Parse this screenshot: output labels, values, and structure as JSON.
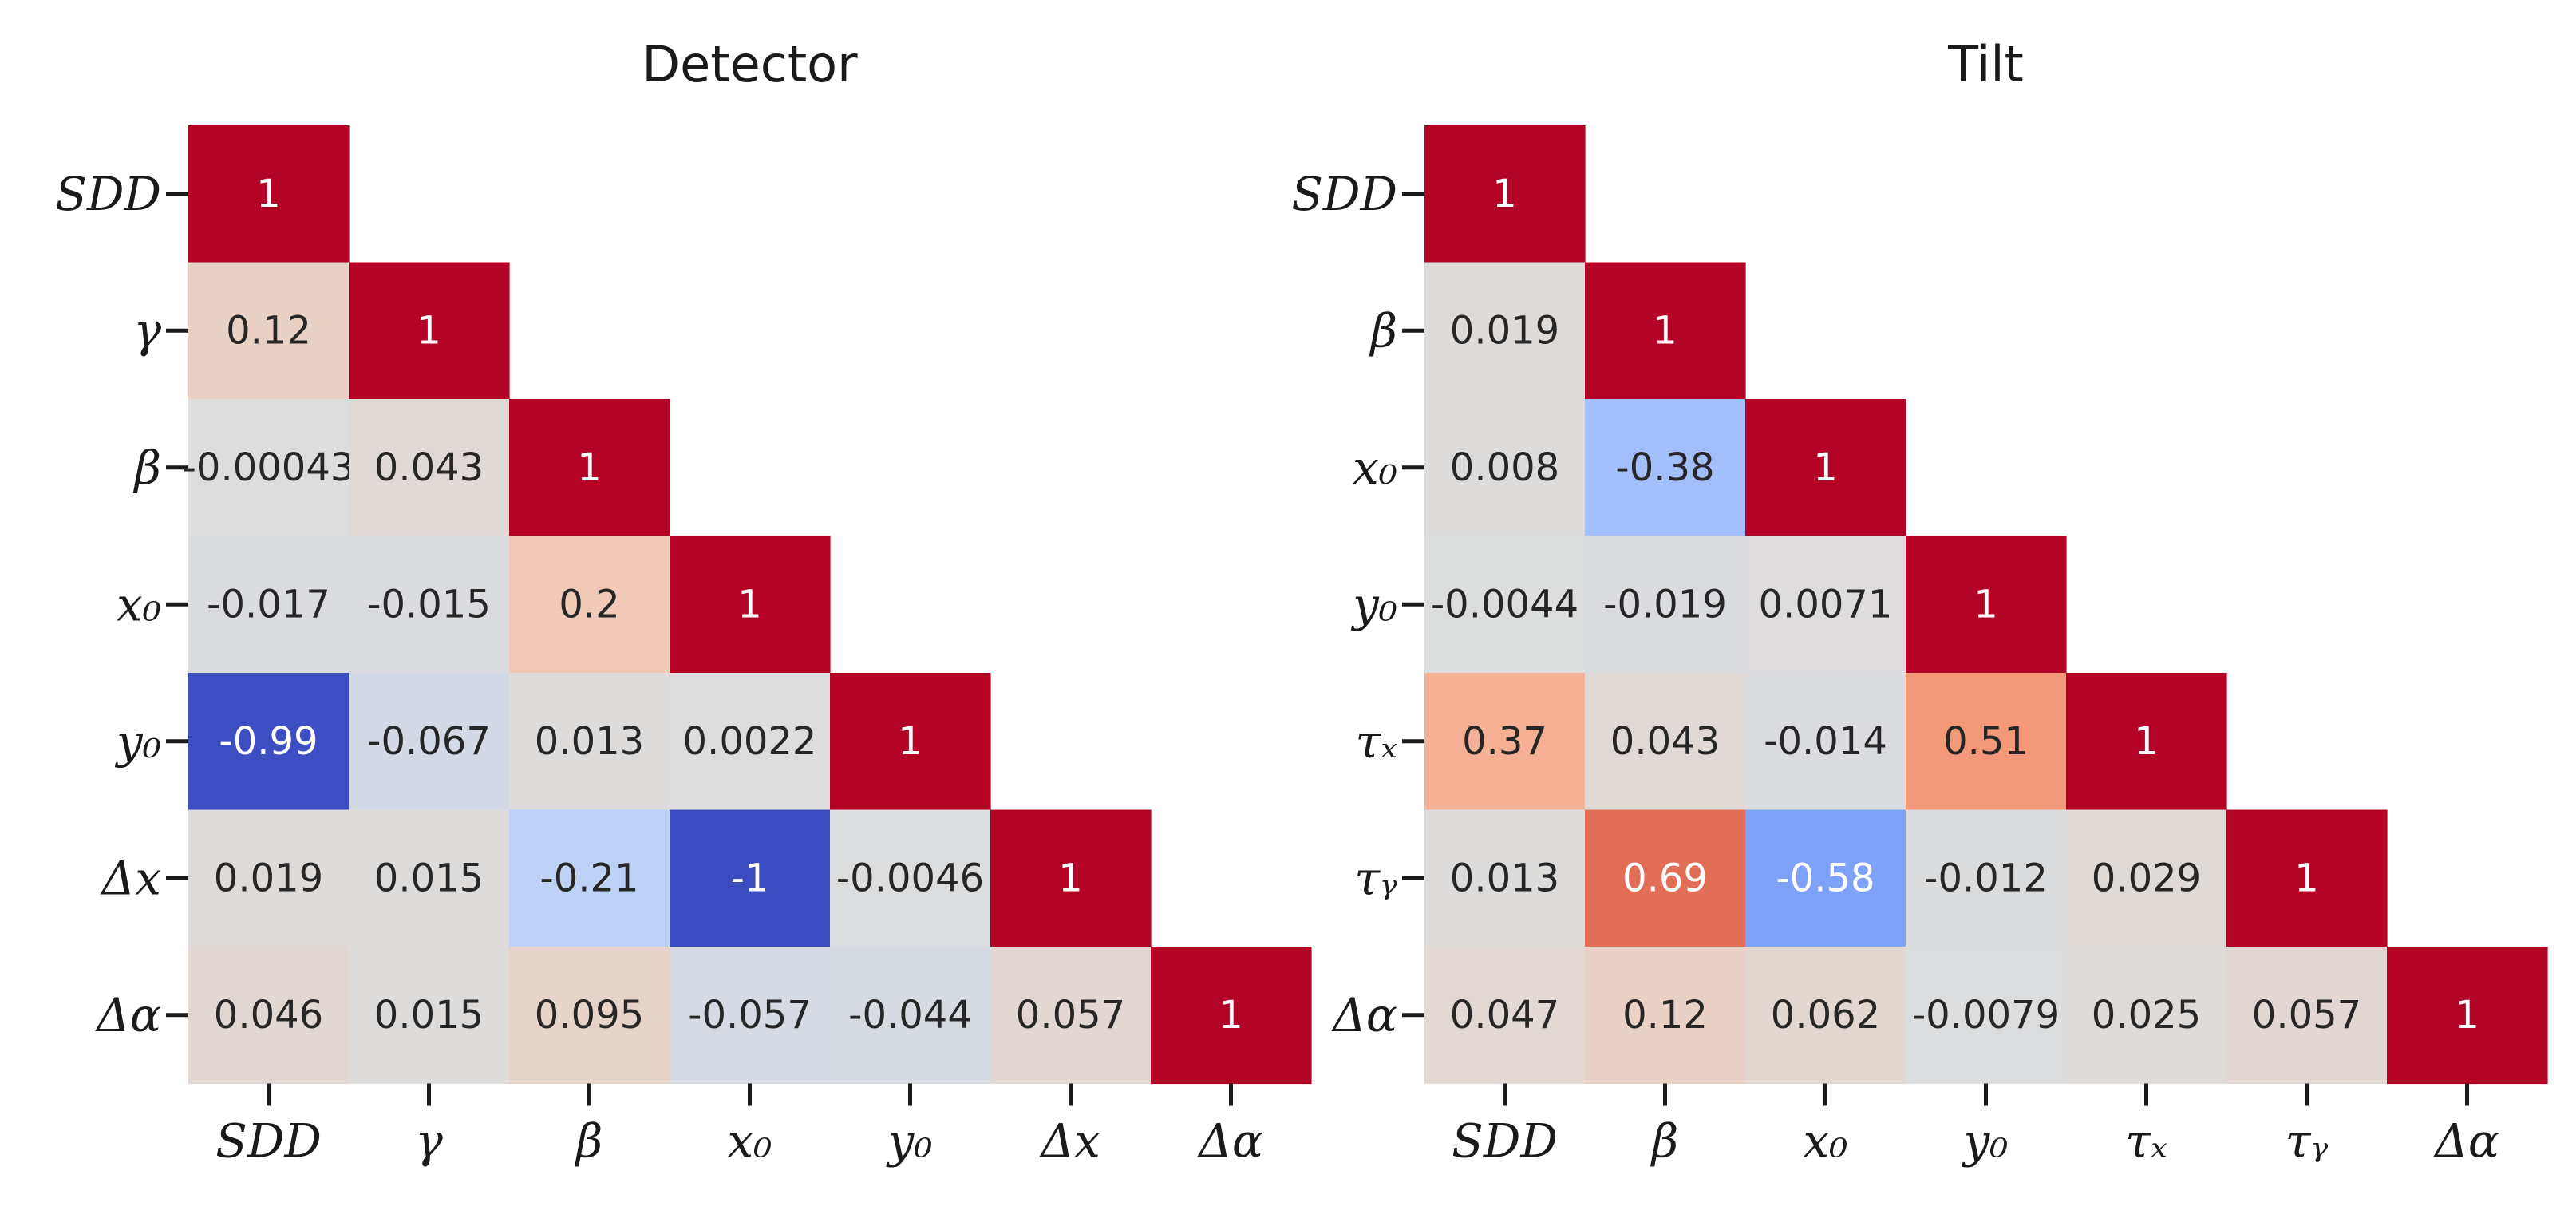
{
  "colors": {
    "neg_max": "#3b4cc0",
    "neutral": "#dddddd",
    "pos_max": "#b40426",
    "text_dark": "#262626",
    "text_light": "#ffffff"
  },
  "chart_data": [
    {
      "type": "heatmap",
      "title": "Detector",
      "labels": [
        "SDD",
        "γ",
        "β",
        "x₀",
        "y₀",
        "Δx",
        "Δα"
      ],
      "vmin": -1,
      "vmax": 1,
      "colormap": "coolwarm",
      "lower_triangle": true,
      "values": [
        [
          "1"
        ],
        [
          "0.12",
          "1"
        ],
        [
          "-0.00043",
          "0.043",
          "1"
        ],
        [
          "-0.017",
          "-0.015",
          "0.2",
          "1"
        ],
        [
          "-0.99",
          "-0.067",
          "0.013",
          "0.0022",
          "1"
        ],
        [
          "0.019",
          "0.015",
          "-0.21",
          "-1",
          "-0.0046",
          "1"
        ],
        [
          "0.046",
          "0.015",
          "0.095",
          "-0.057",
          "-0.044",
          "0.057",
          "1"
        ]
      ]
    },
    {
      "type": "heatmap",
      "title": "Tilt",
      "labels": [
        "SDD",
        "β",
        "x₀",
        "y₀",
        "τₓ",
        "τᵧ",
        "Δα"
      ],
      "vmin": -1,
      "vmax": 1,
      "colormap": "coolwarm",
      "lower_triangle": true,
      "values": [
        [
          "1"
        ],
        [
          "0.019",
          "1"
        ],
        [
          "0.008",
          "-0.38",
          "1"
        ],
        [
          "-0.0044",
          "-0.019",
          "0.0071",
          "1"
        ],
        [
          "0.37",
          "0.043",
          "-0.014",
          "0.51",
          "1"
        ],
        [
          "0.013",
          "0.69",
          "-0.58",
          "-0.012",
          "0.029",
          "1"
        ],
        [
          "0.047",
          "0.12",
          "0.062",
          "-0.0079",
          "0.025",
          "0.057",
          "1"
        ]
      ]
    }
  ]
}
